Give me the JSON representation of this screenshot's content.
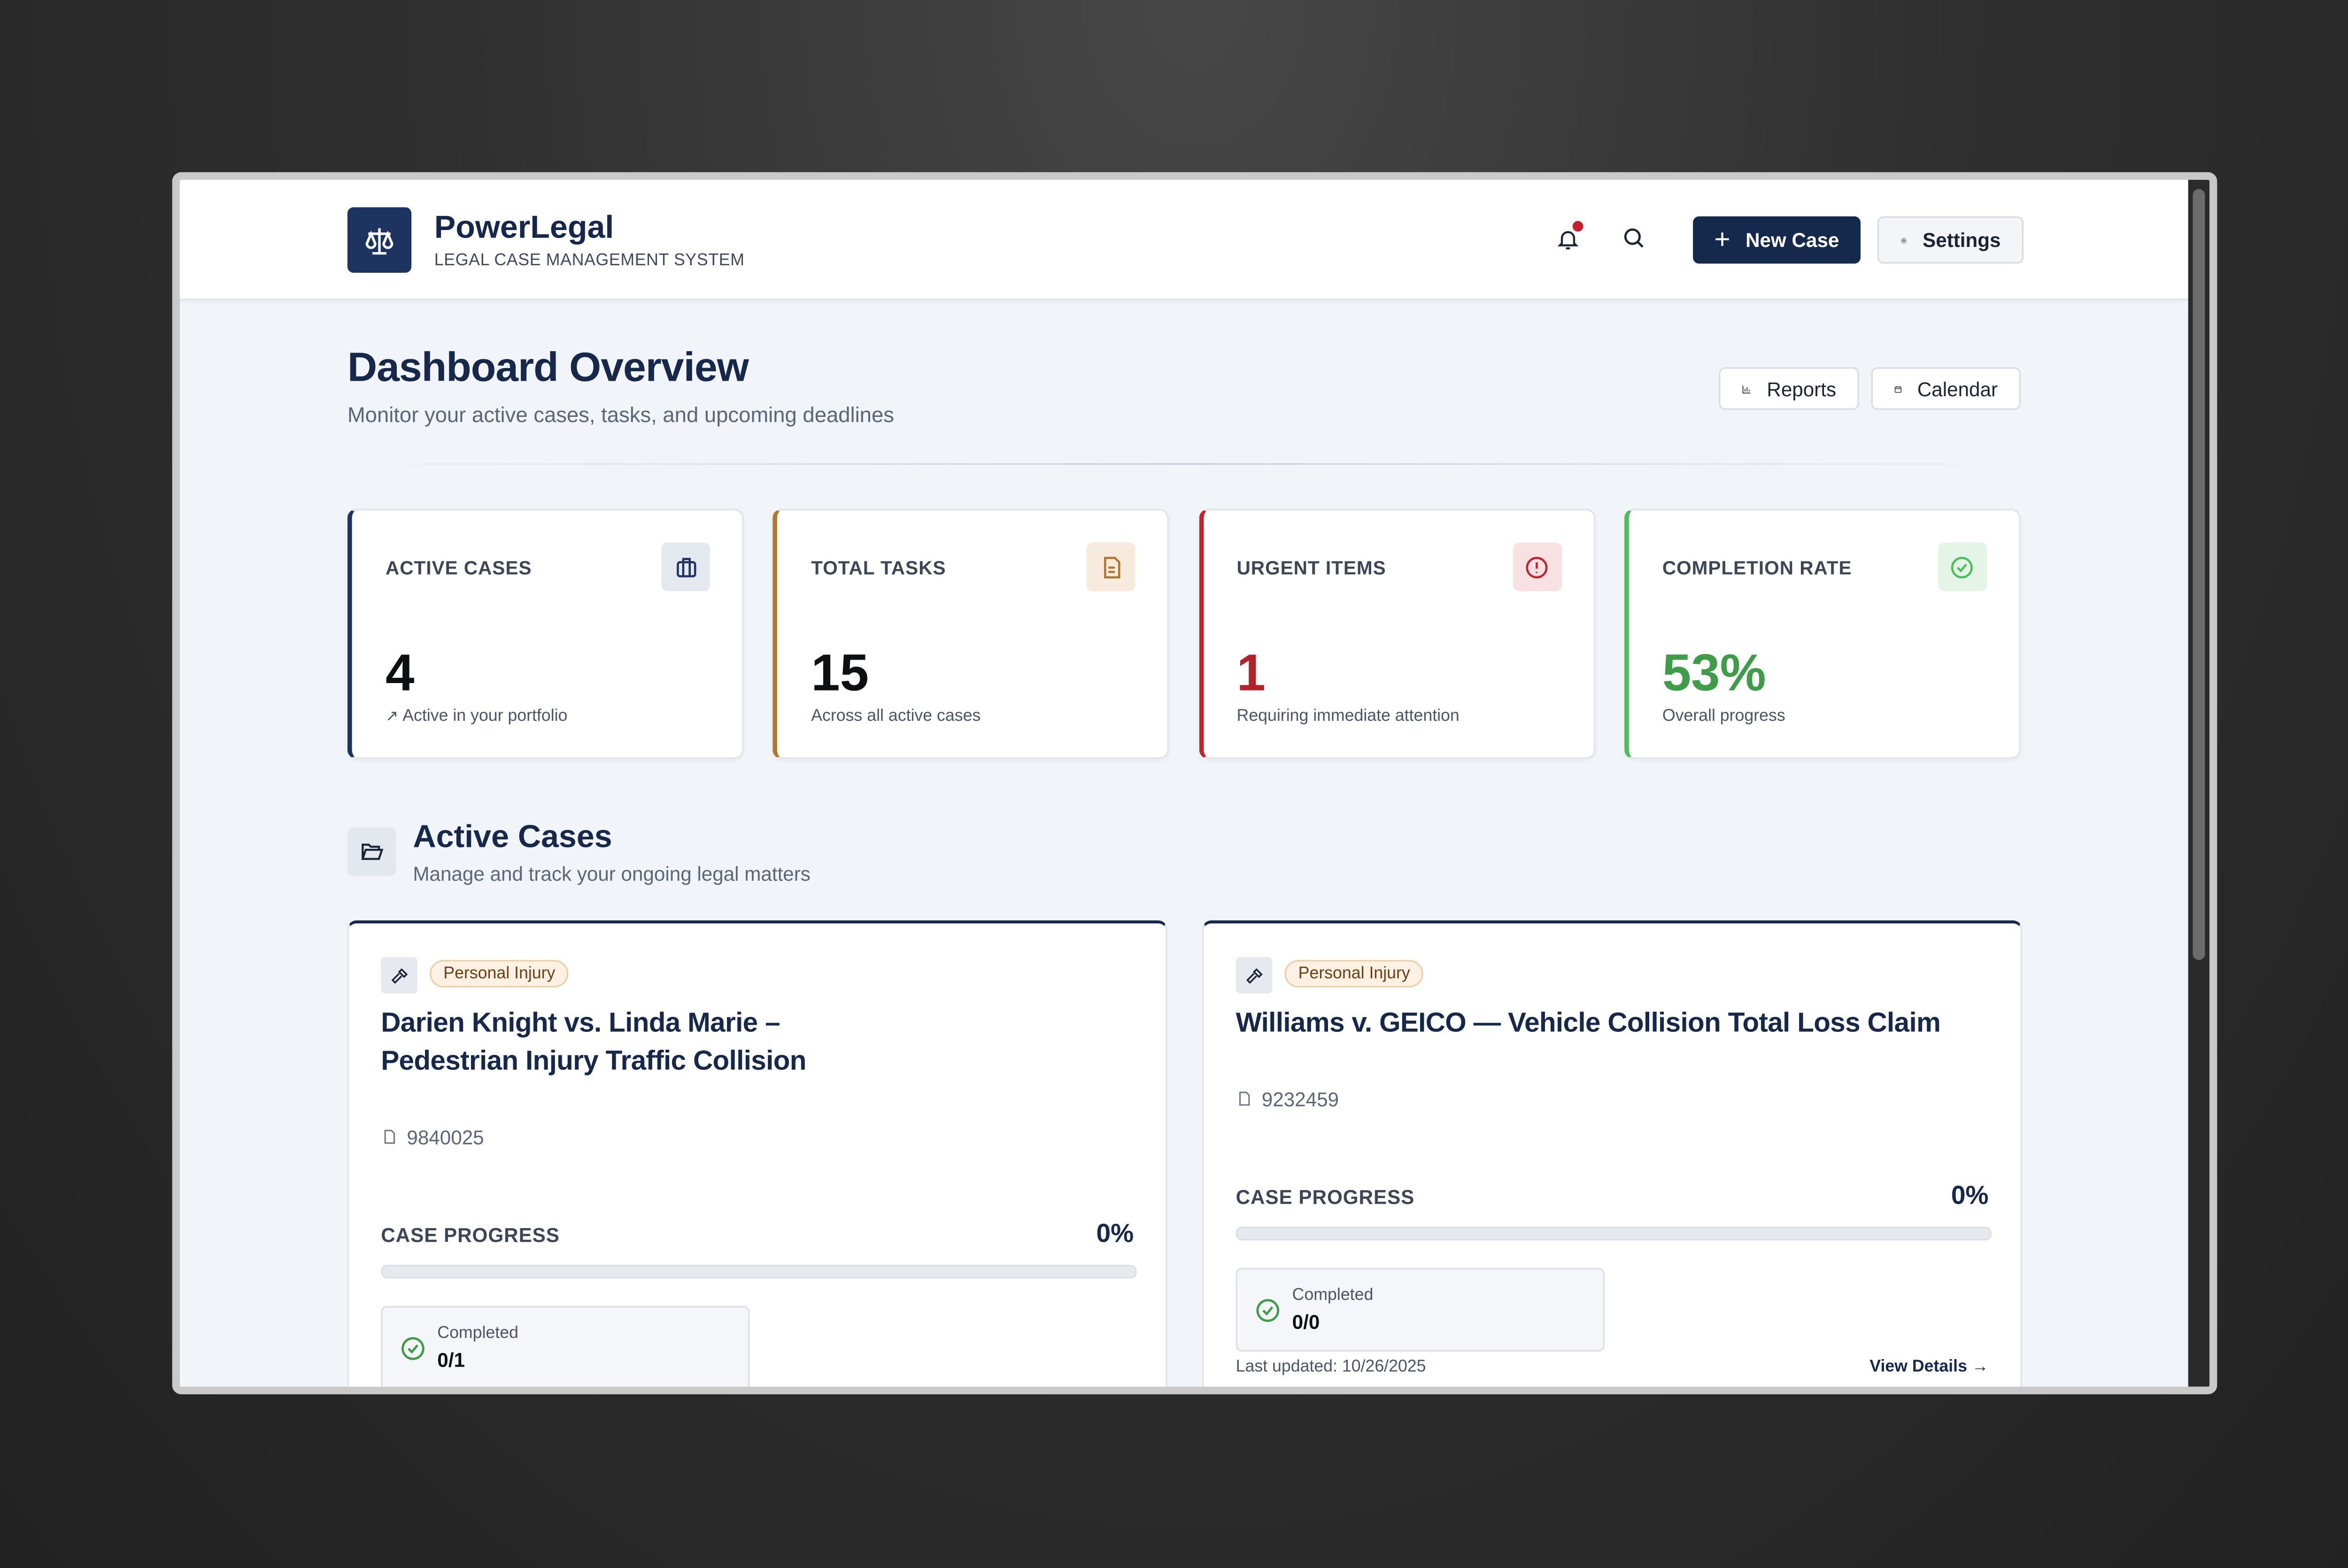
{
  "header": {
    "brand": "PowerLegal",
    "tagline": "LEGAL CASE MANAGEMENT SYSTEM",
    "new_case": "New Case",
    "settings": "Settings"
  },
  "page": {
    "title": "Dashboard Overview",
    "subtitle": "Monitor your active cases, tasks, and upcoming deadlines",
    "actions": [
      "Reports",
      "Calendar"
    ]
  },
  "stats": [
    {
      "label": "ACTIVE CASES",
      "value": "4",
      "note": "Active in your portfolio"
    },
    {
      "label": "TOTAL TASKS",
      "value": "15",
      "note": "Across all active cases"
    },
    {
      "label": "URGENT ITEMS",
      "value": "1",
      "note": "Requiring immediate attention"
    },
    {
      "label": "COMPLETION RATE",
      "value": "53%",
      "note": "Overall progress"
    }
  ],
  "section": {
    "title": "Active Cases",
    "subtitle": "Manage and track your ongoing legal matters"
  },
  "cases": [
    {
      "tag": "Personal Injury",
      "title": "Darien Knight vs. Linda Marie – Pedestrian Injury Traffic Collision",
      "number": "9840025",
      "progress_label": "CASE PROGRESS",
      "progress": "0%",
      "completed_label": "Completed",
      "completed": "0/1"
    },
    {
      "tag": "Personal Injury",
      "title": "Williams v. GEICO — Vehicle Collision Total Loss Claim",
      "number": "9232459",
      "progress_label": "CASE PROGRESS",
      "progress": "0%",
      "completed_label": "Completed",
      "completed": "0/0",
      "updated": "Last updated: 10/26/2025",
      "details": "View Details →"
    }
  ]
}
